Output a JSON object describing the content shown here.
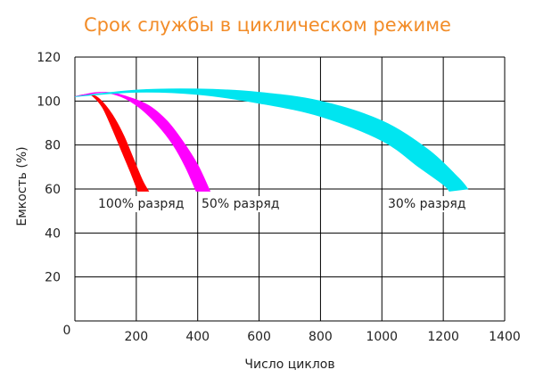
{
  "chart_data": {
    "type": "area",
    "title": "Срок службы в циклическом режиме",
    "xlabel": "Число циклов",
    "ylabel": "Емкость (%)",
    "xlim": [
      0,
      1400
    ],
    "ylim": [
      0,
      120
    ],
    "xticks": [
      0,
      200,
      400,
      600,
      800,
      1000,
      1200,
      1400
    ],
    "yticks": [
      20,
      40,
      60,
      80,
      100,
      120
    ],
    "grid": true,
    "series": [
      {
        "name": "100% разряд",
        "color": "#ff0000",
        "upper": [
          [
            0,
            102
          ],
          [
            40,
            103
          ],
          [
            70,
            102
          ],
          [
            100,
            98
          ],
          [
            130,
            92
          ],
          [
            160,
            84
          ],
          [
            190,
            74
          ],
          [
            220,
            64
          ],
          [
            240,
            59
          ]
        ],
        "lower": [
          [
            0,
            102
          ],
          [
            40,
            103
          ],
          [
            60,
            102
          ],
          [
            90,
            97
          ],
          [
            120,
            88
          ],
          [
            150,
            78
          ],
          [
            180,
            68
          ],
          [
            205,
            59
          ]
        ]
      },
      {
        "name": "50% разряд",
        "color": "#ff00ff",
        "upper": [
          [
            0,
            102
          ],
          [
            100,
            104
          ],
          [
            170,
            102
          ],
          [
            240,
            98
          ],
          [
            300,
            91
          ],
          [
            350,
            82
          ],
          [
            400,
            71
          ],
          [
            440,
            59
          ]
        ],
        "lower": [
          [
            0,
            102
          ],
          [
            80,
            104
          ],
          [
            150,
            102
          ],
          [
            210,
            97
          ],
          [
            270,
            89
          ],
          [
            320,
            80
          ],
          [
            360,
            70
          ],
          [
            395,
            59
          ]
        ]
      },
      {
        "name": "30% разряд",
        "color": "#00e5f0",
        "upper": [
          [
            0,
            102
          ],
          [
            200,
            105
          ],
          [
            400,
            105.5
          ],
          [
            600,
            104
          ],
          [
            800,
            100
          ],
          [
            1000,
            91
          ],
          [
            1150,
            78
          ],
          [
            1250,
            65
          ],
          [
            1280,
            60
          ]
        ],
        "lower": [
          [
            0,
            102
          ],
          [
            200,
            104
          ],
          [
            400,
            103
          ],
          [
            600,
            99
          ],
          [
            800,
            93
          ],
          [
            1000,
            82
          ],
          [
            1120,
            70
          ],
          [
            1200,
            62
          ],
          [
            1220,
            59
          ]
        ]
      }
    ]
  }
}
